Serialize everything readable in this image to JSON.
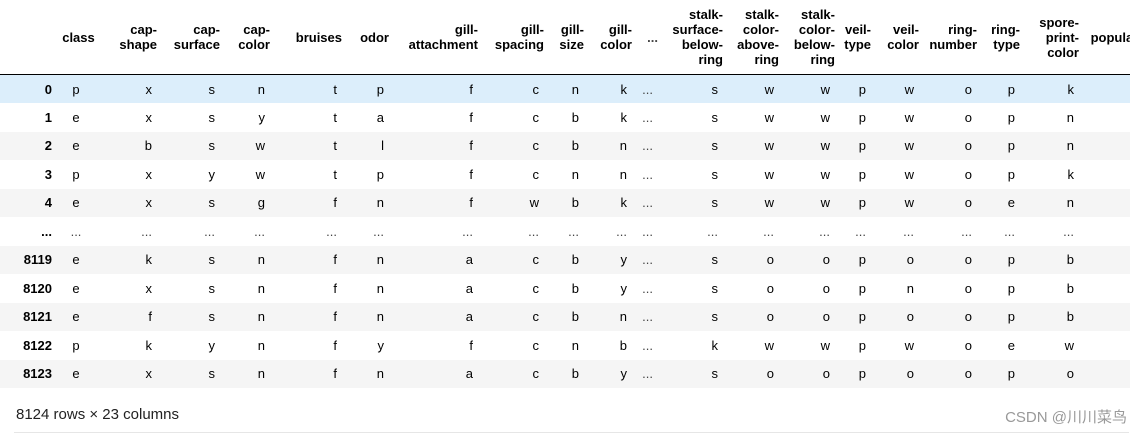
{
  "dataframe": {
    "columns": [
      "class",
      "cap-shape",
      "cap-surface",
      "cap-color",
      "bruises",
      "odor",
      "gill-attachment",
      "gill-spacing",
      "gill-size",
      "gill-color",
      "...",
      "stalk-surface-below-ring",
      "stalk-color-above-ring",
      "stalk-color-below-ring",
      "veil-type",
      "veil-color",
      "ring-number",
      "ring-type",
      "spore-print-color",
      "population"
    ],
    "rows": [
      {
        "index": "0",
        "values": [
          "p",
          "x",
          "s",
          "n",
          "t",
          "p",
          "f",
          "c",
          "n",
          "k",
          "...",
          "s",
          "w",
          "w",
          "p",
          "w",
          "o",
          "p",
          "k",
          ""
        ]
      },
      {
        "index": "1",
        "values": [
          "e",
          "x",
          "s",
          "y",
          "t",
          "a",
          "f",
          "c",
          "b",
          "k",
          "...",
          "s",
          "w",
          "w",
          "p",
          "w",
          "o",
          "p",
          "n",
          ""
        ]
      },
      {
        "index": "2",
        "values": [
          "e",
          "b",
          "s",
          "w",
          "t",
          "l",
          "f",
          "c",
          "b",
          "n",
          "...",
          "s",
          "w",
          "w",
          "p",
          "w",
          "o",
          "p",
          "n",
          ""
        ]
      },
      {
        "index": "3",
        "values": [
          "p",
          "x",
          "y",
          "w",
          "t",
          "p",
          "f",
          "c",
          "n",
          "n",
          "...",
          "s",
          "w",
          "w",
          "p",
          "w",
          "o",
          "p",
          "k",
          ""
        ]
      },
      {
        "index": "4",
        "values": [
          "e",
          "x",
          "s",
          "g",
          "f",
          "n",
          "f",
          "w",
          "b",
          "k",
          "...",
          "s",
          "w",
          "w",
          "p",
          "w",
          "o",
          "e",
          "n",
          ""
        ]
      },
      {
        "index": "...",
        "values": [
          "...",
          "...",
          "...",
          "...",
          "...",
          "...",
          "...",
          "...",
          "...",
          "...",
          "...",
          "...",
          "...",
          "...",
          "...",
          "...",
          "...",
          "...",
          "...",
          ""
        ]
      },
      {
        "index": "8119",
        "values": [
          "e",
          "k",
          "s",
          "n",
          "f",
          "n",
          "a",
          "c",
          "b",
          "y",
          "...",
          "s",
          "o",
          "o",
          "p",
          "o",
          "o",
          "p",
          "b",
          ""
        ]
      },
      {
        "index": "8120",
        "values": [
          "e",
          "x",
          "s",
          "n",
          "f",
          "n",
          "a",
          "c",
          "b",
          "y",
          "...",
          "s",
          "o",
          "o",
          "p",
          "n",
          "o",
          "p",
          "b",
          ""
        ]
      },
      {
        "index": "8121",
        "values": [
          "e",
          "f",
          "s",
          "n",
          "f",
          "n",
          "a",
          "c",
          "b",
          "n",
          "...",
          "s",
          "o",
          "o",
          "p",
          "o",
          "o",
          "p",
          "b",
          ""
        ]
      },
      {
        "index": "8122",
        "values": [
          "p",
          "k",
          "y",
          "n",
          "f",
          "y",
          "f",
          "c",
          "n",
          "b",
          "...",
          "k",
          "w",
          "w",
          "p",
          "w",
          "o",
          "e",
          "w",
          ""
        ]
      },
      {
        "index": "8123",
        "values": [
          "e",
          "x",
          "s",
          "n",
          "f",
          "n",
          "a",
          "c",
          "b",
          "y",
          "...",
          "s",
          "o",
          "o",
          "p",
          "o",
          "o",
          "p",
          "o",
          ""
        ]
      }
    ],
    "highlighted_row": 0,
    "highlight_color": "#dceefb",
    "stripe_color": "#f5f5f5"
  },
  "footer": {
    "shape_text": "8124 rows × 23 columns"
  },
  "watermark": {
    "text": "CSDN @川川菜鸟"
  }
}
